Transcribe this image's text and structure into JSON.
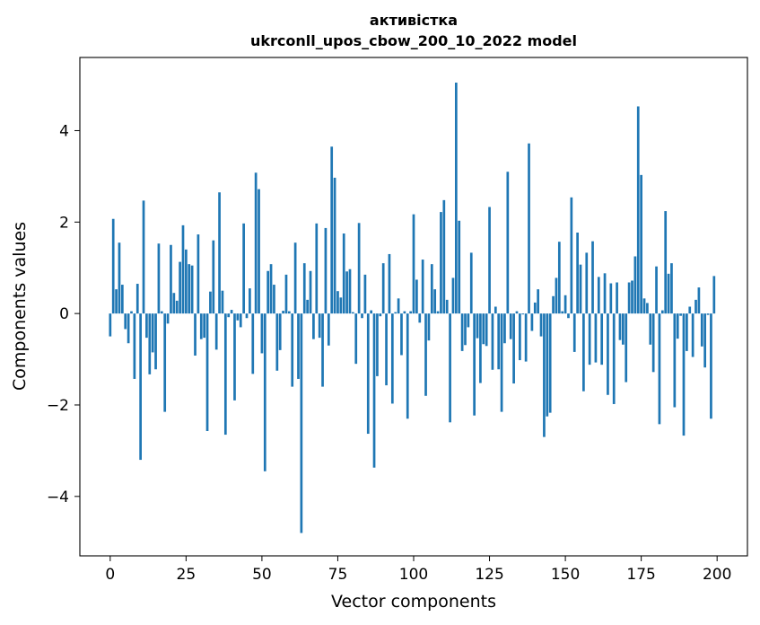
{
  "chart_data": {
    "type": "bar",
    "title": "активістка",
    "subtitle": "ukrconll_upos_cbow_200_10_2022 model",
    "xlabel": "Vector components",
    "ylabel": "Components values",
    "xlim": [
      -10,
      210
    ],
    "ylim": [
      -5.3,
      5.6
    ],
    "xticks": [
      0,
      25,
      50,
      75,
      100,
      125,
      150,
      175,
      200
    ],
    "xtick_labels": [
      "0",
      "25",
      "50",
      "75",
      "100",
      "125",
      "150",
      "175",
      "200"
    ],
    "yticks": [
      -4,
      -2,
      0,
      2,
      4
    ],
    "ytick_labels": [
      "−4",
      "−2",
      "0",
      "2",
      "4"
    ],
    "grid": false,
    "legend": "none",
    "bar_color": "#1f77b4",
    "x": [
      0,
      1,
      2,
      3,
      4,
      5,
      6,
      7,
      8,
      9,
      10,
      11,
      12,
      13,
      14,
      15,
      16,
      17,
      18,
      19,
      20,
      21,
      22,
      23,
      24,
      25,
      26,
      27,
      28,
      29,
      30,
      31,
      32,
      33,
      34,
      35,
      36,
      37,
      38,
      39,
      40,
      41,
      42,
      43,
      44,
      45,
      46,
      47,
      48,
      49,
      50,
      51,
      52,
      53,
      54,
      55,
      56,
      57,
      58,
      59,
      60,
      61,
      62,
      63,
      64,
      65,
      66,
      67,
      68,
      69,
      70,
      71,
      72,
      73,
      74,
      75,
      76,
      77,
      78,
      79,
      80,
      81,
      82,
      83,
      84,
      85,
      86,
      87,
      88,
      89,
      90,
      91,
      92,
      93,
      94,
      95,
      96,
      97,
      98,
      99,
      100,
      101,
      102,
      103,
      104,
      105,
      106,
      107,
      108,
      109,
      110,
      111,
      112,
      113,
      114,
      115,
      116,
      117,
      118,
      119,
      120,
      121,
      122,
      123,
      124,
      125,
      126,
      127,
      128,
      129,
      130,
      131,
      132,
      133,
      134,
      135,
      136,
      137,
      138,
      139,
      140,
      141,
      142,
      143,
      144,
      145,
      146,
      147,
      148,
      149,
      150,
      151,
      152,
      153,
      154,
      155,
      156,
      157,
      158,
      159,
      160,
      161,
      162,
      163,
      164,
      165,
      166,
      167,
      168,
      169,
      170,
      171,
      172,
      173,
      174,
      175,
      176,
      177,
      178,
      179,
      180,
      181,
      182,
      183,
      184,
      185,
      186,
      187,
      188,
      189,
      190,
      191,
      192,
      193,
      194,
      195,
      196,
      197,
      198,
      199
    ],
    "values": [
      -0.5,
      2.07,
      0.53,
      1.55,
      0.63,
      -0.34,
      -0.65,
      0.05,
      -1.43,
      0.65,
      -3.2,
      2.47,
      -0.53,
      -1.33,
      -0.85,
      -1.22,
      1.53,
      0.05,
      -2.15,
      -0.22,
      1.5,
      0.45,
      0.28,
      1.13,
      1.93,
      1.4,
      1.08,
      1.05,
      -0.92,
      1.73,
      -0.56,
      -0.53,
      -2.57,
      0.48,
      1.6,
      -0.79,
      2.65,
      0.5,
      -2.65,
      -0.08,
      0.08,
      -1.9,
      -0.15,
      -0.3,
      1.97,
      -0.1,
      0.55,
      -1.32,
      3.08,
      2.72,
      -0.87,
      -3.45,
      0.93,
      1.08,
      0.63,
      -1.25,
      -0.8,
      0.06,
      0.85,
      0.05,
      -1.6,
      1.55,
      -1.43,
      -4.8,
      1.1,
      0.3,
      0.93,
      -0.56,
      1.97,
      -0.53,
      -1.6,
      1.87,
      -0.7,
      3.65,
      2.97,
      0.49,
      0.35,
      1.75,
      0.92,
      0.97,
      0.03,
      -1.1,
      1.98,
      -0.1,
      0.85,
      -2.63,
      0.07,
      -3.37,
      -1.37,
      -0.06,
      1.1,
      -1.57,
      1.3,
      -1.97,
      0.03,
      0.33,
      -0.91,
      0.05,
      -2.3,
      0.05,
      2.17,
      0.74,
      -0.2,
      1.18,
      -1.8,
      -0.59,
      1.08,
      0.53,
      0.05,
      2.22,
      2.48,
      0.3,
      -2.38,
      0.78,
      5.05,
      2.03,
      -0.82,
      -0.69,
      -0.3,
      1.33,
      -2.23,
      -0.54,
      -1.52,
      -0.67,
      -0.71,
      2.33,
      -1.23,
      0.15,
      -1.22,
      -2.15,
      -0.65,
      3.1,
      -0.56,
      -1.53,
      0.05,
      -1.02,
      -0.02,
      -1.05,
      3.72,
      -0.38,
      0.24,
      0.53,
      -0.5,
      -2.7,
      -2.25,
      -2.17,
      0.38,
      0.78,
      1.57,
      0.05,
      0.4,
      -0.1,
      2.54,
      -0.84,
      1.77,
      1.07,
      -1.7,
      1.33,
      -1.12,
      1.58,
      -1.07,
      0.8,
      -1.12,
      0.88,
      -1.78,
      0.66,
      -1.98,
      0.68,
      -0.58,
      -0.68,
      -1.5,
      0.68,
      0.72,
      1.25,
      4.53,
      3.03,
      0.33,
      0.23,
      -0.68,
      -1.28,
      1.03,
      -2.42,
      0.07,
      2.24,
      0.87,
      1.1,
      -2.05,
      -0.55,
      -0.05,
      -2.67,
      -0.82,
      0.15,
      -0.95,
      0.3,
      0.57,
      -0.72,
      -1.18,
      -0.03,
      -2.3,
      0.82
    ]
  }
}
